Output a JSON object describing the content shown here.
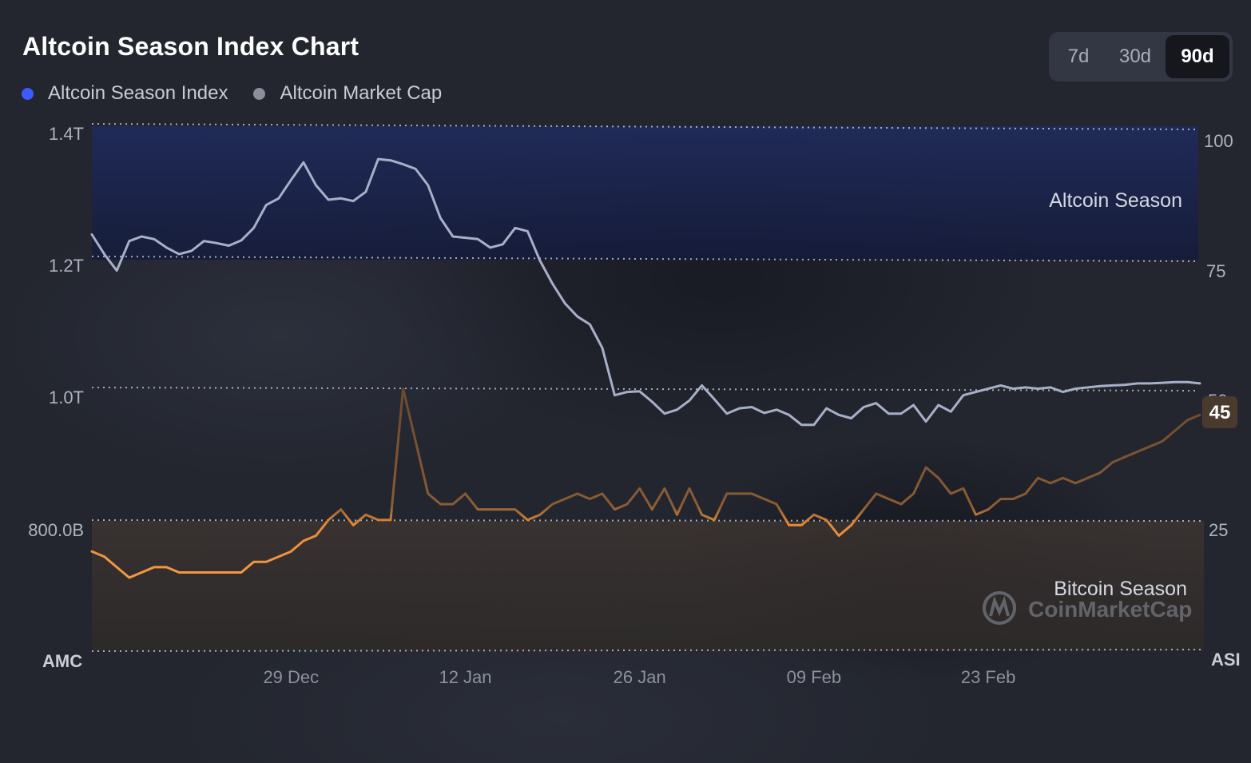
{
  "title": "Altcoin Season Index Chart",
  "legend": [
    {
      "label": "Altcoin Season Index",
      "color": "#3d5afe"
    },
    {
      "label": "Altcoin Market Cap",
      "color": "#8a8f9c"
    }
  ],
  "range_toggle": {
    "options": [
      "7d",
      "30d",
      "90d"
    ],
    "selected": "90d"
  },
  "colors": {
    "index_line": "#f0923a",
    "market_cap_line": "#a7b0c8",
    "altcoin_band": "#1b2550",
    "bitcoin_band": "#3a3330",
    "badge": "#4a3a2e"
  },
  "watermark": {
    "text": "CoinMarketCap",
    "icon": "coinmarketcap-logo-icon"
  },
  "chart_data": {
    "type": "line",
    "left_axis": {
      "label": "AMC",
      "ticks": [
        "1.4T",
        "1.2T",
        "1.0T",
        "800.0B"
      ],
      "range": [
        600,
        1400
      ]
    },
    "right_axis": {
      "label": "ASI",
      "ticks": [
        "100",
        "75",
        "50",
        "25"
      ],
      "range": [
        0,
        100
      ]
    },
    "x_ticks": [
      "29 Dec",
      "12 Jan",
      "26 Jan",
      "09 Feb",
      "23 Feb"
    ],
    "x_tick_days": [
      17,
      31,
      45,
      59,
      73
    ],
    "x_range_days": [
      1,
      90
    ],
    "bands": [
      {
        "label": "Altcoin Season",
        "from": 75,
        "to": 100
      },
      {
        "label": "Bitcoin Season",
        "from": 0,
        "to": 25
      }
    ],
    "current_value_badge": "45",
    "grid": "dotted horizontal",
    "series": [
      {
        "name": "Altcoin Season Index",
        "axis": "right",
        "x": [
          1,
          2,
          3,
          4,
          5,
          6,
          7,
          8,
          9,
          10,
          11,
          12,
          13,
          14,
          15,
          16,
          17,
          18,
          19,
          20,
          21,
          22,
          23,
          24,
          25,
          26,
          27,
          28,
          29,
          30,
          31,
          32,
          33,
          34,
          35,
          36,
          37,
          38,
          39,
          40,
          41,
          42,
          43,
          44,
          45,
          46,
          47,
          48,
          49,
          50,
          51,
          52,
          53,
          54,
          55,
          56,
          57,
          58,
          59,
          60,
          61,
          62,
          63,
          64,
          65,
          66,
          67,
          68,
          69,
          70,
          71,
          72,
          73,
          74,
          75,
          76,
          77,
          78,
          79,
          80,
          81,
          82,
          83,
          84,
          85,
          86,
          87,
          88,
          89,
          90
        ],
        "values": [
          19,
          18,
          16,
          14,
          15,
          16,
          16,
          15,
          15,
          15,
          15,
          15,
          15,
          17,
          17,
          18,
          19,
          21,
          22,
          25,
          27,
          24,
          26,
          25,
          25,
          50,
          40,
          30,
          28,
          28,
          30,
          27,
          27,
          27,
          27,
          25,
          26,
          28,
          29,
          30,
          29,
          30,
          27,
          28,
          31,
          27,
          31,
          26,
          31,
          26,
          25,
          30,
          30,
          30,
          29,
          28,
          24,
          24,
          26,
          25,
          22,
          24,
          27,
          30,
          29,
          28,
          30,
          35,
          33,
          30,
          31,
          26,
          27,
          29,
          29,
          30,
          33,
          32,
          33,
          32,
          33,
          34,
          36,
          37,
          38,
          39,
          40,
          42,
          44,
          45
        ]
      },
      {
        "name": "Altcoin Market Cap",
        "axis": "left",
        "unit": "B",
        "x": [
          1,
          2,
          3,
          4,
          5,
          6,
          7,
          8,
          9,
          10,
          11,
          12,
          13,
          14,
          15,
          16,
          17,
          18,
          19,
          20,
          21,
          22,
          23,
          24,
          25,
          26,
          27,
          28,
          29,
          30,
          31,
          32,
          33,
          34,
          35,
          36,
          37,
          38,
          39,
          40,
          41,
          42,
          43,
          44,
          45,
          46,
          47,
          48,
          49,
          50,
          51,
          52,
          53,
          54,
          55,
          56,
          57,
          58,
          59,
          60,
          61,
          62,
          63,
          64,
          65,
          66,
          67,
          68,
          69,
          70,
          71,
          72,
          73,
          74,
          75,
          76,
          77,
          78,
          79,
          80,
          81,
          82,
          83,
          84,
          85,
          86,
          87,
          88,
          89,
          90
        ],
        "values": [
          1235,
          1205,
          1180,
          1225,
          1232,
          1228,
          1215,
          1205,
          1210,
          1225,
          1222,
          1218,
          1226,
          1245,
          1280,
          1290,
          1318,
          1345,
          1310,
          1288,
          1290,
          1286,
          1300,
          1350,
          1348,
          1342,
          1335,
          1310,
          1260,
          1232,
          1230,
          1228,
          1215,
          1220,
          1245,
          1240,
          1195,
          1160,
          1130,
          1110,
          1098,
          1062,
          990,
          995,
          996,
          980,
          962,
          968,
          982,
          1005,
          984,
          962,
          970,
          972,
          963,
          968,
          960,
          945,
          945,
          970,
          960,
          955,
          972,
          978,
          962,
          962,
          975,
          950,
          975,
          965,
          990,
          995,
          1000,
          1005,
          1000,
          1002,
          1000,
          1002,
          995,
          1000,
          1002,
          1004,
          1005,
          1006,
          1008,
          1008,
          1009,
          1010,
          1010,
          1008
        ]
      }
    ]
  }
}
